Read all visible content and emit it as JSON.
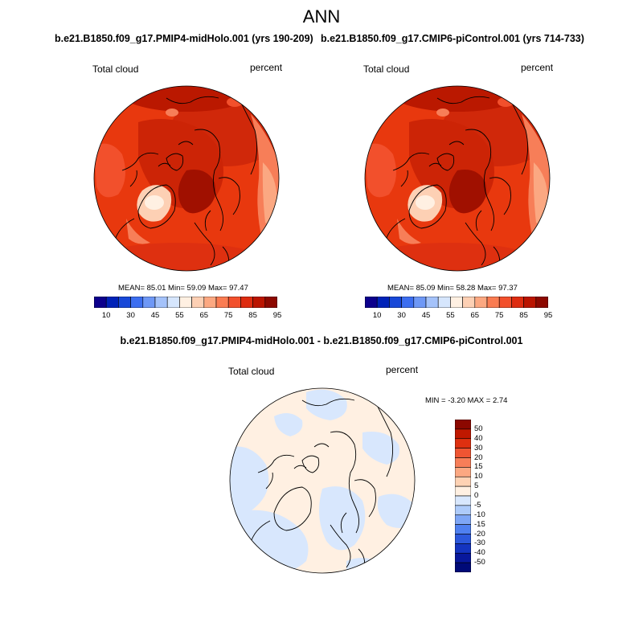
{
  "title": "ANN",
  "panels": [
    {
      "header": "b.e21.B1850.f09_g17.PMIP4-midHolo.001 (yrs 190-209)",
      "variable": "Total cloud",
      "units": "percent",
      "stats": {
        "mean": "85.01",
        "min": "59.09",
        "max": "97.47"
      },
      "stats_text": "MEAN=  85.01   Min=  59.09   Max=  97.47"
    },
    {
      "header": "b.e21.B1850.f09_g17.CMIP6-piControl.001 (yrs 714-733)",
      "variable": "Total cloud",
      "units": "percent",
      "stats": {
        "mean": "85.09",
        "min": "58.28",
        "max": "97.37"
      },
      "stats_text": "MEAN=  85.09   Min=  58.28   Max=  97.37"
    },
    {
      "header": "b.e21.B1850.f09_g17.PMIP4-midHolo.001 - b.e21.B1850.f09_g17.CMIP6-piControl.001",
      "variable": "Total cloud",
      "units": "percent",
      "stats": {
        "min": "-3.20",
        "max": "2.74"
      },
      "stats_text": "MIN =  -3.20 MAX =   2.74"
    }
  ],
  "colorbar_abs": {
    "colors": [
      "#0c008c",
      "#0022b8",
      "#1848d8",
      "#3c6ef0",
      "#6e98f6",
      "#a4c2fa",
      "#d6e6fd",
      "#fff0e2",
      "#fdd0b4",
      "#fca881",
      "#fa7c52",
      "#f2502c",
      "#de2c10",
      "#ba1400",
      "#8c0800"
    ],
    "tick_labels": [
      "10",
      "30",
      "45",
      "55",
      "65",
      "75",
      "85",
      "95"
    ]
  },
  "colorbar_diff": {
    "colors": [
      "#8c0800",
      "#c01800",
      "#de3010",
      "#ef5532",
      "#f77e58",
      "#fba882",
      "#fed2b4",
      "#fff0e2",
      "#d8e7fd",
      "#aecbfa",
      "#7ea6f6",
      "#4f80f0",
      "#2c58dc",
      "#1434c0",
      "#08189c",
      "#000a78"
    ],
    "tick_labels": [
      "50",
      "40",
      "30",
      "20",
      "15",
      "10",
      "5",
      "0",
      "-5",
      "-10",
      "-15",
      "-20",
      "-30",
      "-40",
      "-50"
    ]
  }
}
